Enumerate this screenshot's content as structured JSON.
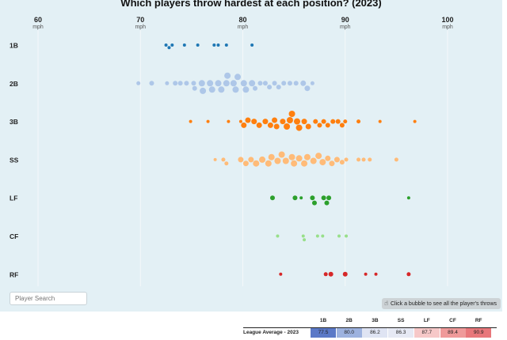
{
  "title": "Which players throw hardest at each position? (2023)",
  "search": {
    "placeholder": "Player Search"
  },
  "hint": {
    "icon": "pointer-hand-icon",
    "label": "Click a bubble to see all the player's throws"
  },
  "league_average": {
    "label": "League Average - 2023",
    "positions": [
      "1B",
      "2B",
      "3B",
      "SS",
      "LF",
      "CF",
      "RF"
    ],
    "values": [
      "77.5",
      "80.0",
      "86.2",
      "86.3",
      "87.7",
      "89.4",
      "90.9"
    ],
    "cell_colors": [
      "#5b79c7",
      "#9db2df",
      "#dfe4f3",
      "#e6e9f4",
      "#f6c8c8",
      "#ef9a9a",
      "#e8777b"
    ]
  },
  "chart_data": {
    "type": "scatter",
    "title": "Which players throw hardest at each position? (2023)",
    "x_axis": {
      "unit": "mph",
      "ticks": [
        60,
        70,
        80,
        90,
        100
      ],
      "range": [
        57,
        105
      ],
      "position": "top"
    },
    "grid": true,
    "series": [
      {
        "name": "1B",
        "color": "#1f77b4",
        "points": [
          {
            "x": 72.5,
            "r": 2
          },
          {
            "x": 72.8,
            "r": 2
          },
          {
            "x": 73.1,
            "r": 2
          },
          {
            "x": 74.3,
            "r": 2
          },
          {
            "x": 75.6,
            "r": 2
          },
          {
            "x": 77.2,
            "r": 2
          },
          {
            "x": 77.6,
            "r": 2
          },
          {
            "x": 78.4,
            "r": 2
          },
          {
            "x": 80.9,
            "r": 2
          }
        ]
      },
      {
        "name": "2B",
        "color": "#aec7e8",
        "points": [
          {
            "x": 69.8,
            "r": 2.5
          },
          {
            "x": 71.1,
            "r": 3
          },
          {
            "x": 72.6,
            "r": 2.5
          },
          {
            "x": 73.4,
            "r": 3
          },
          {
            "x": 73.9,
            "r": 3
          },
          {
            "x": 74.5,
            "r": 3
          },
          {
            "x": 75.2,
            "r": 3
          },
          {
            "x": 75.3,
            "r": 3
          },
          {
            "x": 76.0,
            "r": 4
          },
          {
            "x": 76.1,
            "r": 4
          },
          {
            "x": 76.8,
            "r": 4
          },
          {
            "x": 77.0,
            "r": 4
          },
          {
            "x": 77.6,
            "r": 4
          },
          {
            "x": 77.9,
            "r": 4
          },
          {
            "x": 78.4,
            "r": 4
          },
          {
            "x": 78.5,
            "r": 4
          },
          {
            "x": 79.1,
            "r": 4
          },
          {
            "x": 79.3,
            "r": 4
          },
          {
            "x": 79.5,
            "r": 4
          },
          {
            "x": 80.1,
            "r": 4
          },
          {
            "x": 80.3,
            "r": 4
          },
          {
            "x": 80.9,
            "r": 4
          },
          {
            "x": 81.2,
            "r": 3
          },
          {
            "x": 81.7,
            "r": 3
          },
          {
            "x": 82.2,
            "r": 3
          },
          {
            "x": 82.6,
            "r": 3
          },
          {
            "x": 83.1,
            "r": 3
          },
          {
            "x": 83.5,
            "r": 3
          },
          {
            "x": 84.0,
            "r": 3
          },
          {
            "x": 84.6,
            "r": 3
          },
          {
            "x": 85.2,
            "r": 3
          },
          {
            "x": 85.9,
            "r": 3.5
          },
          {
            "x": 86.3,
            "r": 3.5
          },
          {
            "x": 86.8,
            "r": 2.5
          }
        ]
      },
      {
        "name": "3B",
        "color": "#ff7f0e",
        "points": [
          {
            "x": 74.9,
            "r": 2
          },
          {
            "x": 76.6,
            "r": 2
          },
          {
            "x": 78.6,
            "r": 2
          },
          {
            "x": 79.8,
            "r": 2
          },
          {
            "x": 80.1,
            "r": 3.5
          },
          {
            "x": 80.5,
            "r": 3.5
          },
          {
            "x": 81.1,
            "r": 3.5
          },
          {
            "x": 81.6,
            "r": 3.5
          },
          {
            "x": 82.2,
            "r": 3.5
          },
          {
            "x": 82.7,
            "r": 3.5
          },
          {
            "x": 83.1,
            "r": 3.5
          },
          {
            "x": 83.3,
            "r": 3.5
          },
          {
            "x": 83.9,
            "r": 3.5
          },
          {
            "x": 84.3,
            "r": 4
          },
          {
            "x": 84.6,
            "r": 4
          },
          {
            "x": 84.8,
            "r": 4
          },
          {
            "x": 85.3,
            "r": 4
          },
          {
            "x": 85.5,
            "r": 4
          },
          {
            "x": 86.0,
            "r": 3.5
          },
          {
            "x": 86.4,
            "r": 3.5
          },
          {
            "x": 87.1,
            "r": 3
          },
          {
            "x": 87.5,
            "r": 3
          },
          {
            "x": 87.9,
            "r": 3
          },
          {
            "x": 88.3,
            "r": 3
          },
          {
            "x": 88.8,
            "r": 3
          },
          {
            "x": 89.3,
            "r": 3
          },
          {
            "x": 89.7,
            "r": 3
          },
          {
            "x": 90.0,
            "r": 2.5
          },
          {
            "x": 91.3,
            "r": 2.5
          },
          {
            "x": 93.4,
            "r": 2
          },
          {
            "x": 96.8,
            "r": 2
          }
        ]
      },
      {
        "name": "SS",
        "color": "#ffbb78",
        "points": [
          {
            "x": 77.3,
            "r": 2
          },
          {
            "x": 78.1,
            "r": 2.5
          },
          {
            "x": 78.4,
            "r": 2.5
          },
          {
            "x": 79.8,
            "r": 3.5
          },
          {
            "x": 80.3,
            "r": 3.5
          },
          {
            "x": 80.8,
            "r": 3.5
          },
          {
            "x": 81.3,
            "r": 4
          },
          {
            "x": 81.9,
            "r": 4
          },
          {
            "x": 82.5,
            "r": 4
          },
          {
            "x": 82.8,
            "r": 4
          },
          {
            "x": 83.4,
            "r": 4
          },
          {
            "x": 83.8,
            "r": 4
          },
          {
            "x": 84.2,
            "r": 4
          },
          {
            "x": 84.8,
            "r": 4
          },
          {
            "x": 85.0,
            "r": 4
          },
          {
            "x": 85.5,
            "r": 4
          },
          {
            "x": 86.0,
            "r": 4
          },
          {
            "x": 86.3,
            "r": 4
          },
          {
            "x": 86.9,
            "r": 4
          },
          {
            "x": 87.4,
            "r": 4
          },
          {
            "x": 87.8,
            "r": 4
          },
          {
            "x": 88.3,
            "r": 3.5
          },
          {
            "x": 88.7,
            "r": 3.5
          },
          {
            "x": 89.2,
            "r": 3.5
          },
          {
            "x": 89.7,
            "r": 3
          },
          {
            "x": 90.1,
            "r": 2.5
          },
          {
            "x": 91.3,
            "r": 2.5
          },
          {
            "x": 91.8,
            "r": 2.5
          },
          {
            "x": 92.4,
            "r": 2.5
          },
          {
            "x": 95.0,
            "r": 2.5
          }
        ]
      },
      {
        "name": "LF",
        "color": "#2ca02c",
        "points": [
          {
            "x": 82.9,
            "r": 3
          },
          {
            "x": 85.1,
            "r": 3
          },
          {
            "x": 85.7,
            "r": 2
          },
          {
            "x": 86.8,
            "r": 3
          },
          {
            "x": 87.0,
            "r": 3
          },
          {
            "x": 87.9,
            "r": 3
          },
          {
            "x": 88.2,
            "r": 3
          },
          {
            "x": 88.4,
            "r": 3
          },
          {
            "x": 96.2,
            "r": 2
          }
        ]
      },
      {
        "name": "CF",
        "color": "#98df8a",
        "points": [
          {
            "x": 83.4,
            "r": 2
          },
          {
            "x": 85.9,
            "r": 2
          },
          {
            "x": 86.0,
            "r": 2
          },
          {
            "x": 87.3,
            "r": 2
          },
          {
            "x": 87.8,
            "r": 2
          },
          {
            "x": 89.4,
            "r": 2
          },
          {
            "x": 90.1,
            "r": 2
          }
        ]
      },
      {
        "name": "RF",
        "color": "#d62728",
        "points": [
          {
            "x": 83.7,
            "r": 2
          },
          {
            "x": 88.1,
            "r": 2.5
          },
          {
            "x": 88.6,
            "r": 3
          },
          {
            "x": 90.0,
            "r": 3
          },
          {
            "x": 92.0,
            "r": 2
          },
          {
            "x": 93.0,
            "r": 2
          },
          {
            "x": 96.2,
            "r": 2.5
          }
        ]
      }
    ]
  }
}
